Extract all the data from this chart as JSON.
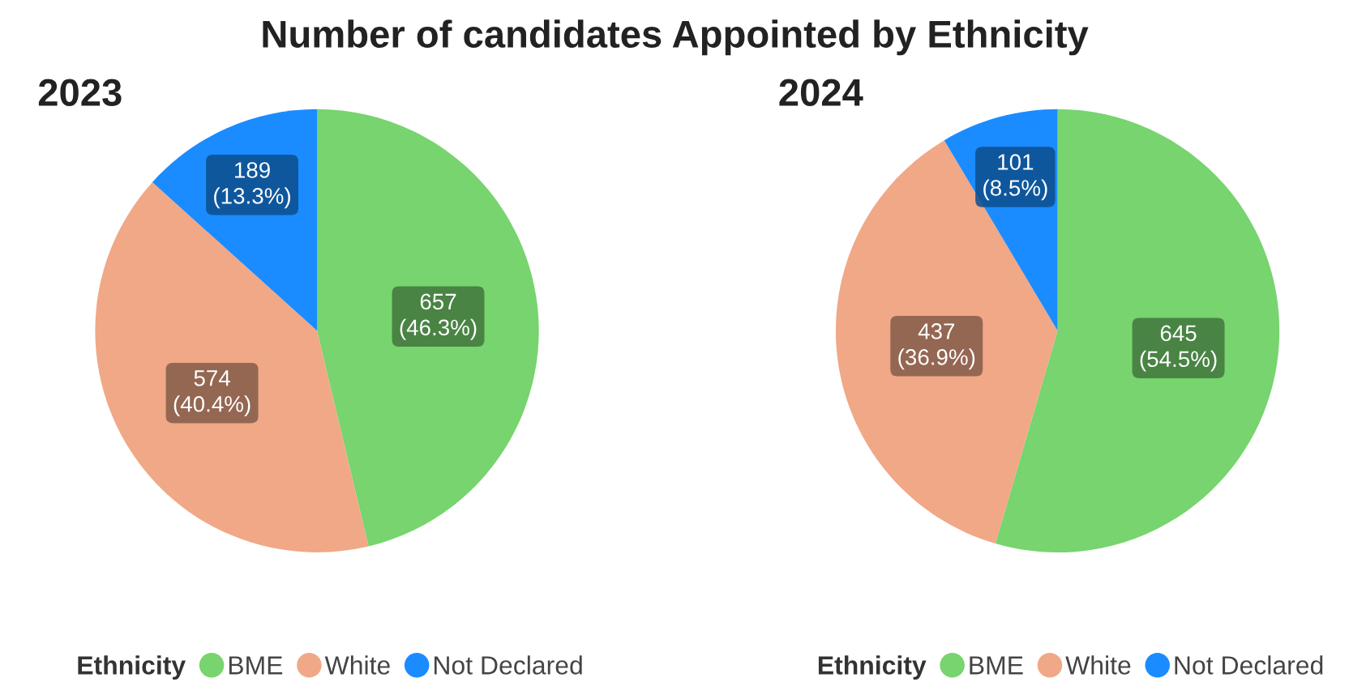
{
  "chart_data": [
    {
      "type": "other",
      "title": "Number of candidates Appointed by Ethnicity"
    },
    {
      "type": "pie",
      "title": "2023",
      "categories": [
        "BME",
        "White",
        "Not Declared"
      ],
      "values": [
        657,
        574,
        189
      ],
      "colors": [
        "#77d46e",
        "#f0a887",
        "#1a8cff"
      ],
      "value_labels": [
        "657\n(46.3%)",
        "574\n(40.4%)",
        "189\n(13.3%)"
      ],
      "legend": "bottom",
      "legend_title": "Ethnicity"
    },
    {
      "type": "pie",
      "title": "2024",
      "categories": [
        "BME",
        "White",
        "Not Declared"
      ],
      "values": [
        645,
        437,
        101
      ],
      "colors": [
        "#77d46e",
        "#f0a887",
        "#1a8cff"
      ],
      "value_labels": [
        "645\n(54.5%)",
        "437\n(36.9%)",
        "101\n(8.5%)"
      ],
      "legend": "bottom",
      "legend_title": "Ethnicity"
    }
  ]
}
